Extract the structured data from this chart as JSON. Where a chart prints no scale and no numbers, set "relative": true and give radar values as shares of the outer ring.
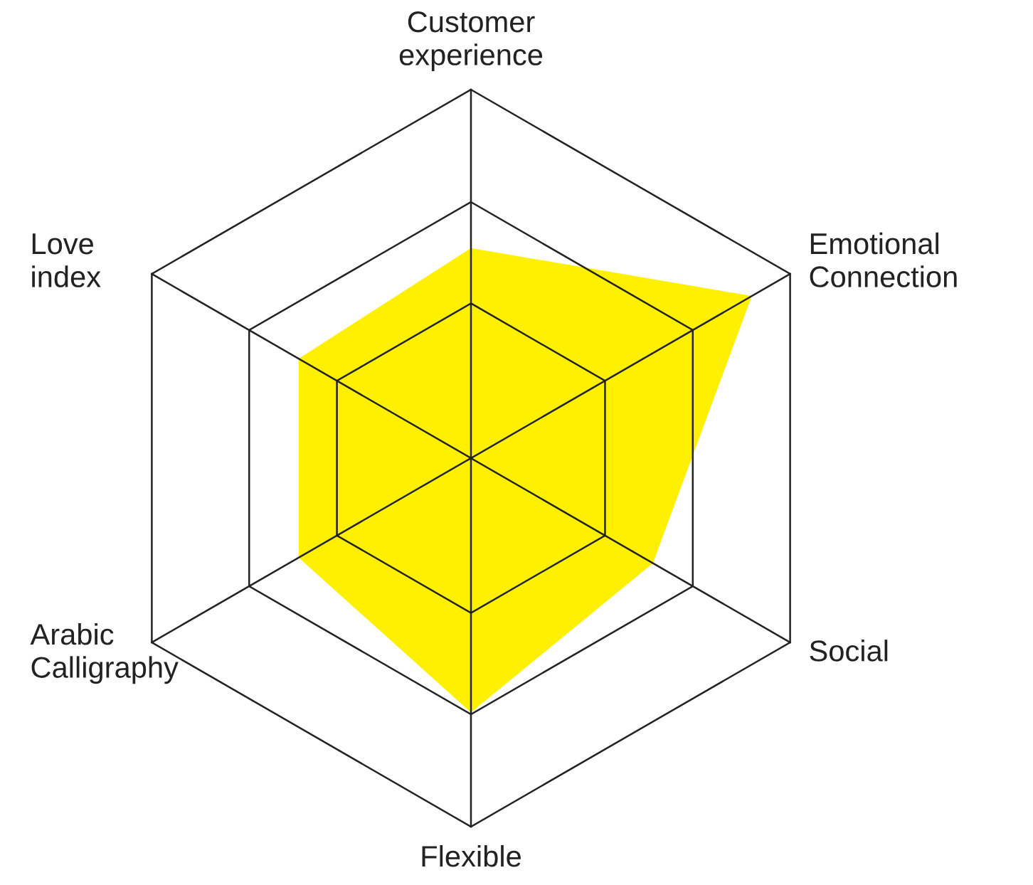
{
  "chart_data": {
    "type": "radar",
    "relative": true,
    "categories": [
      "Customer\nexperience",
      "Emotional\nConnection",
      "Social",
      "Flexible",
      "Arabic\nCalligraphy",
      "Love\nindex"
    ],
    "series": [
      {
        "color": "#fff000",
        "values": [
          0.57,
          0.88,
          0.57,
          0.69,
          0.54,
          0.54
        ]
      }
    ],
    "grid": true,
    "legend": false
  }
}
